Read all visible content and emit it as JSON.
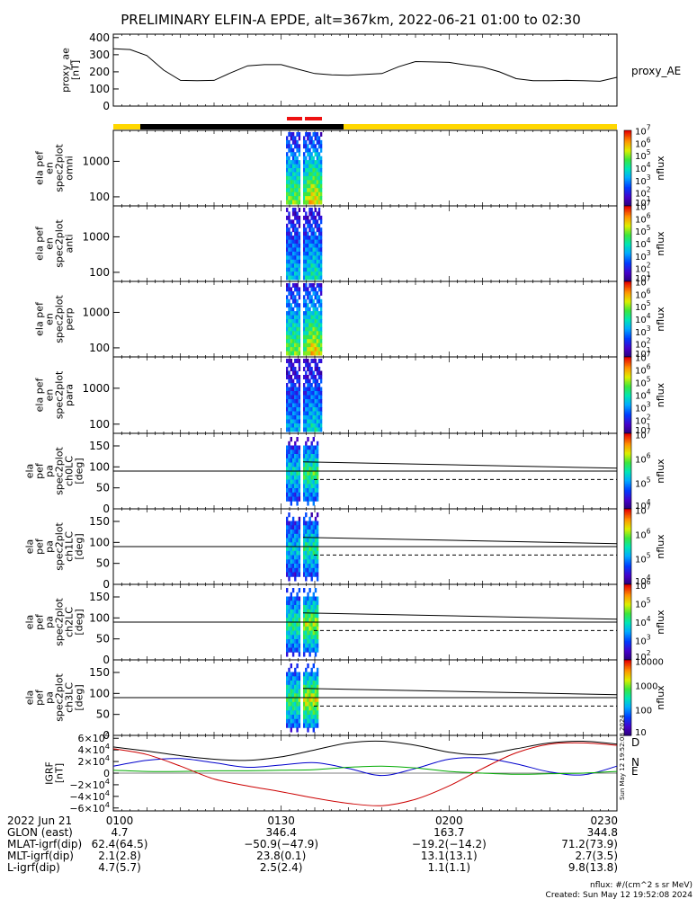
{
  "title": "PRELIMINARY ELFIN-A EPDE, alt=367km, 2022-06-21 01:00 to 02:30",
  "colors": {
    "sunlight": "#ffd700",
    "shadow": "#000000",
    "science_bar": "#ee1111",
    "field_D": "#000000",
    "field_N": "#0000cc",
    "field_E": "#00aa00",
    "field_Z": "#cc0000"
  },
  "chart_data": [
    {
      "type": "line",
      "name": "proxy_ae",
      "ylabel": "proxy_ae [nT]",
      "legend": "proxy_AE",
      "ylim": [
        0,
        420
      ],
      "yticks": [
        "400",
        "300",
        "200",
        "100",
        "0"
      ],
      "x_minutes": [
        0,
        3,
        6,
        9,
        12,
        15,
        18,
        21,
        24,
        27,
        30,
        33,
        36,
        39,
        42,
        45,
        48,
        51,
        54,
        57,
        60,
        63,
        66,
        69,
        72,
        75,
        78,
        81,
        84,
        87,
        90
      ],
      "values": [
        335,
        330,
        295,
        210,
        150,
        148,
        150,
        195,
        235,
        242,
        242,
        215,
        190,
        182,
        180,
        185,
        190,
        230,
        260,
        258,
        255,
        240,
        228,
        200,
        160,
        148,
        148,
        150,
        148,
        145,
        168
      ]
    },
    {
      "type": "heatmap",
      "name": "ela_pef_en_spec2plot_omni",
      "ylabel": "ela pef en spec2plot omni [keV]",
      "yscale": "log",
      "yticks": [
        "1000",
        "100"
      ],
      "cbar_label": "nflux",
      "cbar_ticks": [
        "10^7",
        "10^6",
        "10^5",
        "10^4",
        "10^3",
        "10^2",
        "10^1"
      ]
    },
    {
      "type": "heatmap",
      "name": "ela_pef_en_spec2plot_anti",
      "ylabel": "ela pef en spec2plot anti [keV]",
      "yscale": "log",
      "yticks": [
        "1000",
        "100"
      ],
      "cbar_label": "nflux",
      "cbar_ticks": [
        "10^7",
        "10^6",
        "10^5",
        "10^4",
        "10^3",
        "10^2",
        "10^1"
      ]
    },
    {
      "type": "heatmap",
      "name": "ela_pef_en_spec2plot_perp",
      "ylabel": "ela pef en spec2plot perp [keV]",
      "yscale": "log",
      "yticks": [
        "1000",
        "100"
      ],
      "cbar_label": "nflux",
      "cbar_ticks": [
        "10^7",
        "10^6",
        "10^5",
        "10^4",
        "10^3",
        "10^2",
        "10^1"
      ]
    },
    {
      "type": "heatmap",
      "name": "ela_pef_en_spec2plot_para",
      "ylabel": "ela pef en spec2plot para [keV]",
      "yscale": "log",
      "yticks": [
        "1000",
        "100"
      ],
      "cbar_label": "nflux",
      "cbar_ticks": [
        "10^7",
        "10^6",
        "10^5",
        "10^4",
        "10^3",
        "10^2",
        "10^1"
      ]
    },
    {
      "type": "heatmap",
      "name": "ela_pef_pa_spec2plot_ch0LC",
      "ylabel": "ela pef pa spec2plot ch0LC [deg]",
      "ylim": [
        0,
        180
      ],
      "yticks": [
        "150",
        "100",
        "50",
        "0"
      ],
      "cbar_label": "nflux",
      "cbar_ticks": [
        "10^7",
        "10^6",
        "10^5",
        "10^4"
      ]
    },
    {
      "type": "heatmap",
      "name": "ela_pef_pa_spec2plot_ch1LC",
      "ylabel": "ela pef pa spec2plot ch1LC [deg]",
      "ylim": [
        0,
        180
      ],
      "yticks": [
        "150",
        "100",
        "50",
        "0"
      ],
      "cbar_label": "nflux",
      "cbar_ticks": [
        "10^7",
        "10^6",
        "10^5",
        "10^4"
      ]
    },
    {
      "type": "heatmap",
      "name": "ela_pef_pa_spec2plot_ch2LC",
      "ylabel": "ela pef pa spec2plot ch2LC [deg]",
      "ylim": [
        0,
        180
      ],
      "yticks": [
        "150",
        "100",
        "50",
        "0"
      ],
      "cbar_label": "nflux",
      "cbar_ticks": [
        "10^6",
        "10^5",
        "10^4",
        "10^3",
        "10^2"
      ]
    },
    {
      "type": "heatmap",
      "name": "ela_pef_pa_spec2plot_ch3LC",
      "ylabel": "ela pef pa spec2plot ch3LC [deg]",
      "ylim": [
        0,
        180
      ],
      "yticks": [
        "150",
        "100",
        "50",
        "0"
      ],
      "cbar_label": "nflux",
      "cbar_ticks": [
        "10000",
        "1000",
        "100",
        "10"
      ]
    },
    {
      "type": "line",
      "name": "IGRF",
      "ylabel": "IGRF [nT]",
      "ylim": [
        -65000,
        65000
      ],
      "yticks": [
        "6×10^4",
        "4×10^4",
        "2×10^4",
        "0",
        "−2×10^4",
        "−4×10^4",
        "−6×10^4"
      ],
      "x_minutes": [
        0,
        6,
        12,
        18,
        24,
        30,
        36,
        42,
        48,
        54,
        60,
        66,
        72,
        78,
        84,
        90
      ],
      "series": [
        {
          "name": "D",
          "values": [
            45000,
            38000,
            30000,
            24000,
            22000,
            28000,
            40000,
            52000,
            55000,
            48000,
            36000,
            32000,
            42000,
            52000,
            55000,
            50000
          ]
        },
        {
          "name": "N",
          "values": [
            12000,
            22000,
            25000,
            18000,
            10000,
            14000,
            18000,
            8000,
            -4000,
            8000,
            24000,
            26000,
            16000,
            2000,
            -3000,
            12000
          ]
        },
        {
          "name": "E",
          "values": [
            5000,
            3000,
            3000,
            4000,
            4000,
            5000,
            6000,
            10000,
            12000,
            9000,
            3000,
            0,
            -2000,
            -1000,
            0,
            3000
          ]
        },
        {
          "name": "Z",
          "values": [
            42000,
            32000,
            12000,
            -10000,
            -22000,
            -32000,
            -43000,
            -52000,
            -56000,
            -45000,
            -22000,
            8000,
            35000,
            50000,
            52000,
            48000
          ]
        }
      ]
    }
  ],
  "xaxis": {
    "labels": [
      "0100",
      "0130",
      "0200",
      "0230"
    ],
    "rows": [
      {
        "label": "2022 Jun 21",
        "values": [
          "0100",
          "0130",
          "0200",
          "0230"
        ]
      },
      {
        "label": "GLON (east)",
        "values": [
          "4.7",
          "346.4",
          "163.7",
          "344.8"
        ]
      },
      {
        "label": "MLAT-igrf(dip)",
        "values": [
          "62.4(64.5)",
          "−50.9(−47.9)",
          "−19.2(−14.2)",
          "71.2(73.9)"
        ]
      },
      {
        "label": "MLT-igrf(dip)",
        "values": [
          "2.1(2.8)",
          "23.8(0.1)",
          "13.1(13.1)",
          "2.7(3.5)"
        ]
      },
      {
        "label": "L-igrf(dip)",
        "values": [
          "4.7(5.7)",
          "2.5(2.4)",
          "1.1(1.1)",
          "9.8(13.8)"
        ]
      }
    ]
  },
  "footer": {
    "units": "nflux: #/(cm^2 s sr MeV)",
    "created": "Created: Sun May 12 19:52:08 2024",
    "side_stamp": "Sun May 12 19:52:08 2024"
  }
}
